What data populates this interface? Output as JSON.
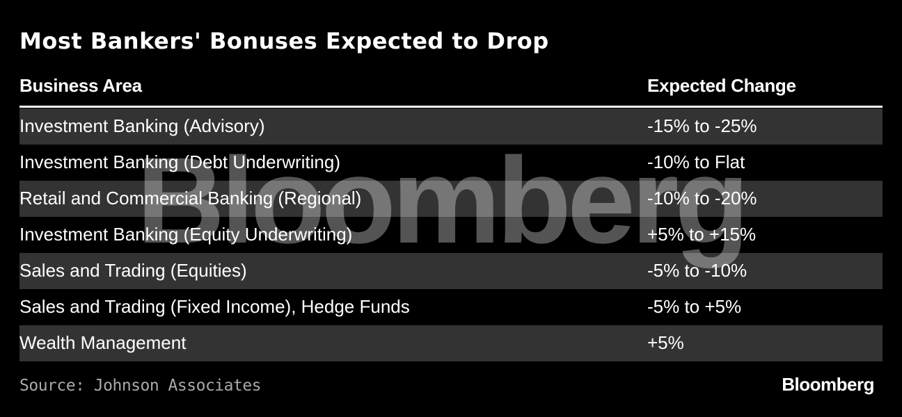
{
  "header": {
    "title": "Most Bankers' Bonuses Expected to Drop"
  },
  "table": {
    "columns": [
      "Business Area",
      "Expected Change"
    ],
    "rows": [
      [
        "Investment Banking (Advisory)",
        "-15% to -25%"
      ],
      [
        "Investment Banking (Debt Underwriting)",
        "-10% to Flat"
      ],
      [
        "Retail and Commercial Banking (Regional)",
        "-10% to -20%"
      ],
      [
        "Investment Banking (Equity Underwriting)",
        "+5% to +15%"
      ],
      [
        "Sales and Trading (Equities)",
        "-5% to -10%"
      ],
      [
        "Sales and Trading (Fixed Income), Hedge Funds",
        "-5% to +5%"
      ],
      [
        "Wealth Management",
        "+5%"
      ]
    ]
  },
  "watermark": "Bloomberg",
  "footer": {
    "source": "Source: Johnson Associates",
    "logo": "Bloomberg"
  }
}
